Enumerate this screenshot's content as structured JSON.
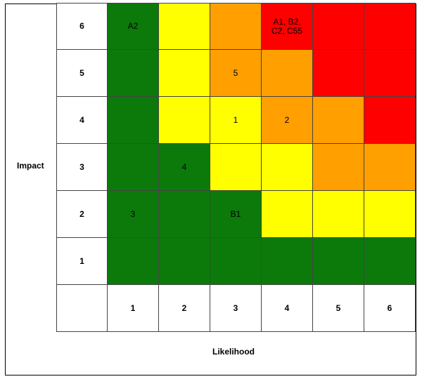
{
  "axes": {
    "y_label": "Impact",
    "x_label": "Likelihood"
  },
  "impact_levels": [
    "6",
    "5",
    "4",
    "3",
    "2",
    "1"
  ],
  "likelihood_levels": [
    "1",
    "2",
    "3",
    "4",
    "5",
    "6"
  ],
  "colors": {
    "g": "#0b7a0b",
    "y": "#ffff00",
    "o": "#ff9f00",
    "r": "#ff0000"
  },
  "grid": [
    {
      "impact": "6",
      "cells": [
        {
          "color": "g",
          "text": "A2"
        },
        {
          "color": "y",
          "text": ""
        },
        {
          "color": "o",
          "text": ""
        },
        {
          "color": "r",
          "text": "A1, B2,\nC2, C55"
        },
        {
          "color": "r",
          "text": ""
        },
        {
          "color": "r",
          "text": ""
        }
      ]
    },
    {
      "impact": "5",
      "cells": [
        {
          "color": "g",
          "text": ""
        },
        {
          "color": "y",
          "text": ""
        },
        {
          "color": "o",
          "text": "5"
        },
        {
          "color": "o",
          "text": ""
        },
        {
          "color": "r",
          "text": ""
        },
        {
          "color": "r",
          "text": ""
        }
      ]
    },
    {
      "impact": "4",
      "cells": [
        {
          "color": "g",
          "text": ""
        },
        {
          "color": "y",
          "text": ""
        },
        {
          "color": "y",
          "text": "1"
        },
        {
          "color": "o",
          "text": "2"
        },
        {
          "color": "o",
          "text": ""
        },
        {
          "color": "r",
          "text": ""
        }
      ]
    },
    {
      "impact": "3",
      "cells": [
        {
          "color": "g",
          "text": ""
        },
        {
          "color": "g",
          "text": "4"
        },
        {
          "color": "y",
          "text": ""
        },
        {
          "color": "y",
          "text": ""
        },
        {
          "color": "o",
          "text": ""
        },
        {
          "color": "o",
          "text": ""
        }
      ]
    },
    {
      "impact": "2",
      "cells": [
        {
          "color": "g",
          "text": "3"
        },
        {
          "color": "g",
          "text": ""
        },
        {
          "color": "g",
          "text": "B1"
        },
        {
          "color": "y",
          "text": ""
        },
        {
          "color": "y",
          "text": ""
        },
        {
          "color": "y",
          "text": ""
        }
      ]
    },
    {
      "impact": "1",
      "cells": [
        {
          "color": "g",
          "text": ""
        },
        {
          "color": "g",
          "text": ""
        },
        {
          "color": "g",
          "text": ""
        },
        {
          "color": "g",
          "text": ""
        },
        {
          "color": "g",
          "text": ""
        },
        {
          "color": "g",
          "text": ""
        }
      ]
    }
  ]
}
